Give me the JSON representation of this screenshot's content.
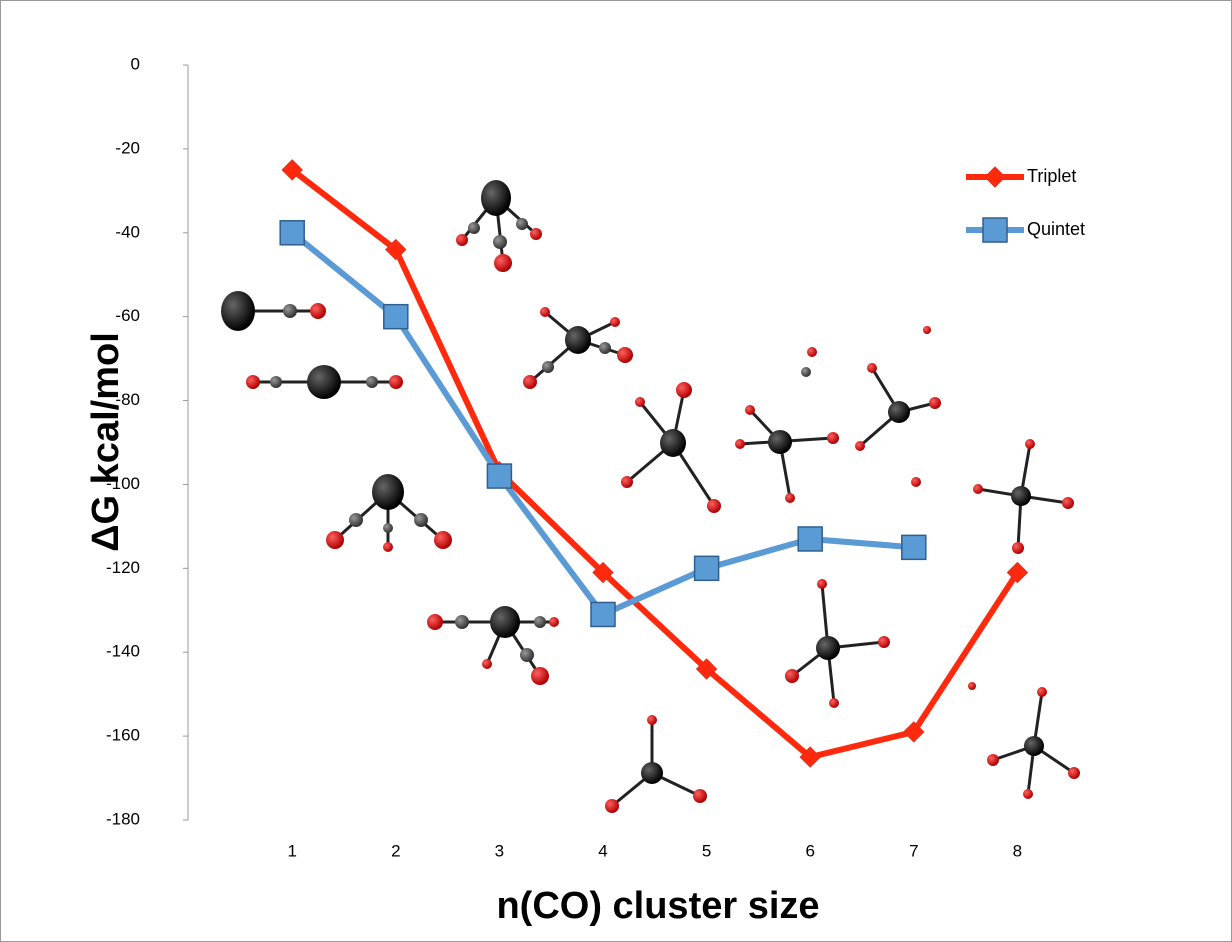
{
  "chart_data": {
    "type": "line",
    "x_label": "n(CO)  cluster size",
    "y_label": "ΔG kcal/mol",
    "x": [
      1,
      2,
      3,
      4,
      5,
      6,
      7,
      8
    ],
    "series": [
      {
        "name": "Triplet",
        "color": "#ff2a0e",
        "marker": "diamond",
        "values": [
          -25,
          -44,
          -97,
          -121,
          -144,
          -165,
          -159,
          -121
        ]
      },
      {
        "name": "Quintet",
        "color": "#5b9bd5",
        "marker": "square",
        "values": [
          -40,
          -60,
          -98,
          -131,
          -120,
          -113,
          -115,
          null
        ]
      }
    ],
    "xlim": [
      0,
      9
    ],
    "xticks": [
      1,
      2,
      3,
      4,
      5,
      6,
      7,
      8
    ],
    "ylim": [
      -180,
      0
    ],
    "yticks": [
      0,
      -20,
      -40,
      -60,
      -80,
      -100,
      -120,
      -140,
      -160,
      -180
    ],
    "legend": "upper right",
    "grid": false
  }
}
